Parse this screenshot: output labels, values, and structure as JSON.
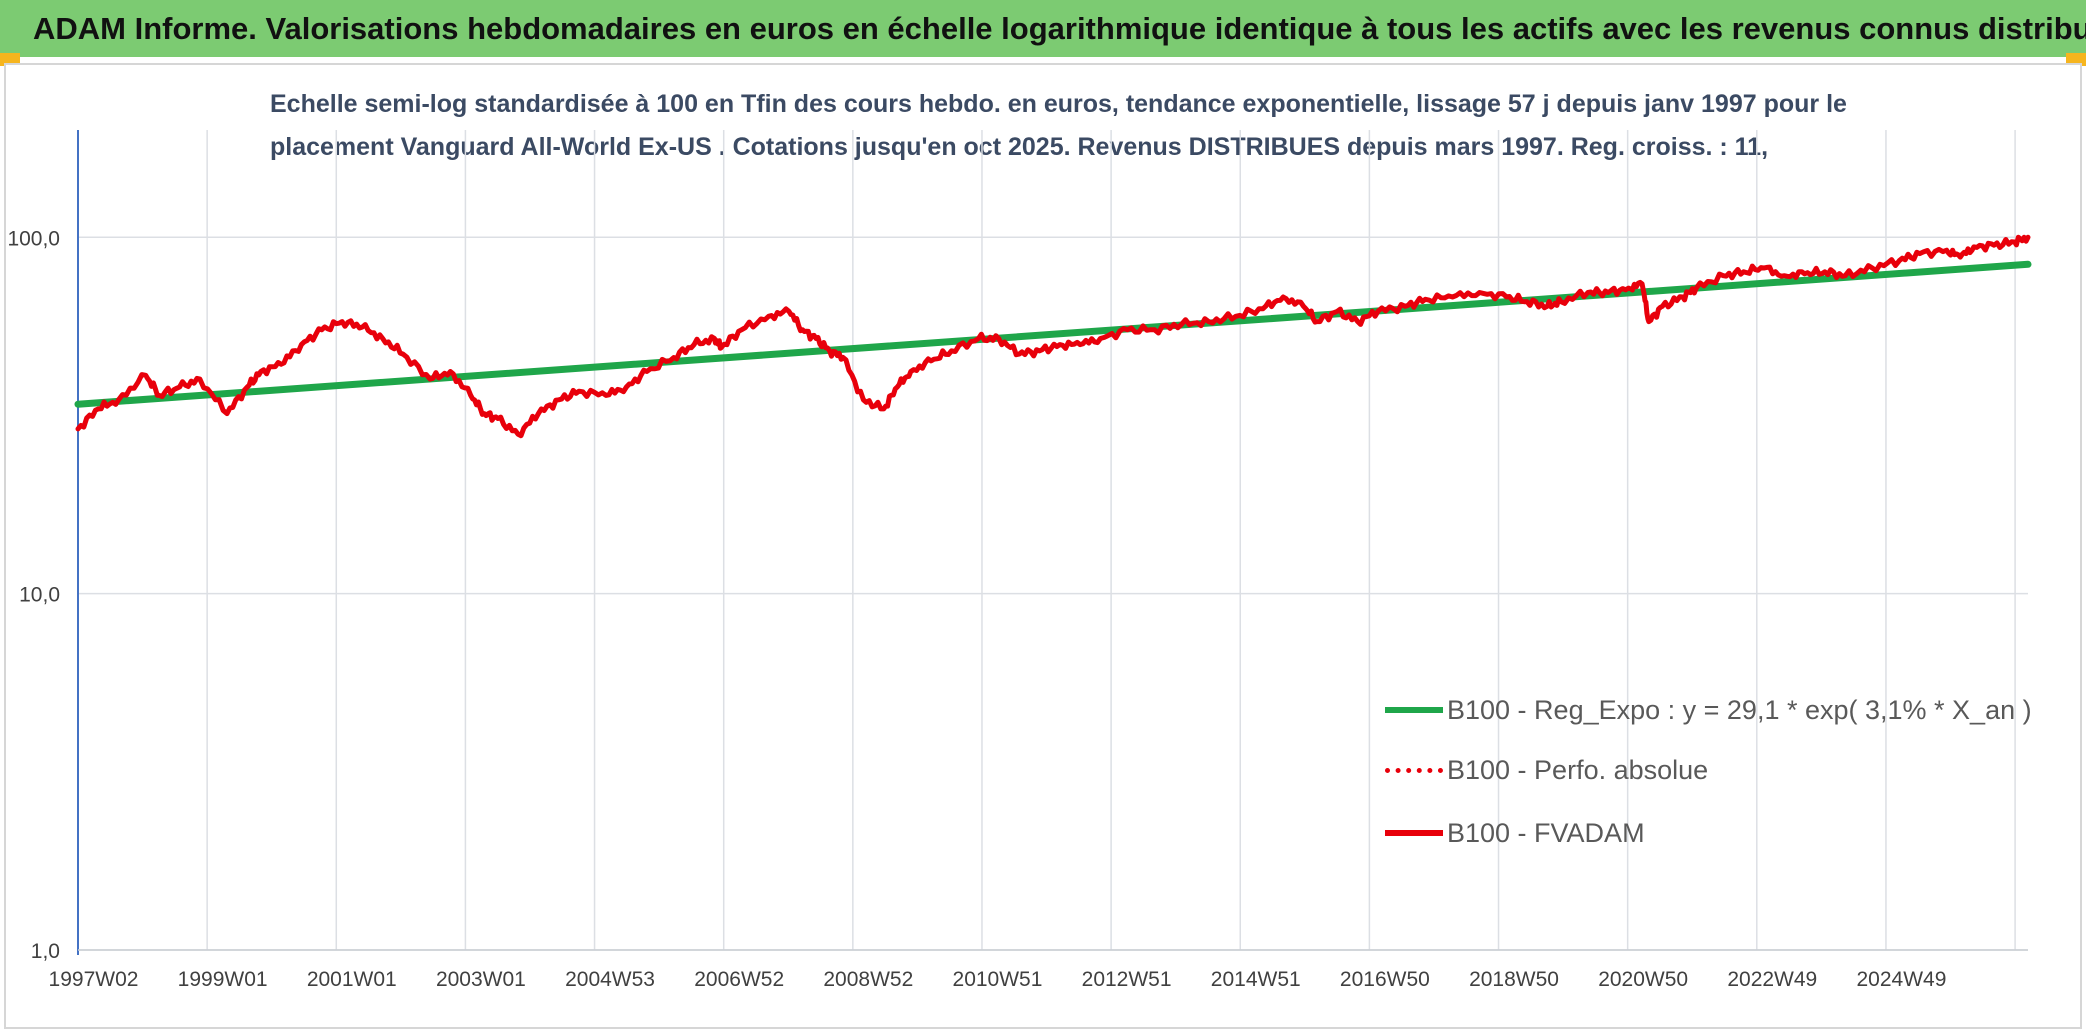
{
  "header": {
    "title": "ADAM Informe. Valorisations hebdomadaires en euros en échelle logarithmique identique à tous les actifs avec les revenus connus distribués"
  },
  "colors": {
    "banner": "#7ccb72",
    "corner": "#f6b51e",
    "fvadam": "#e8000b",
    "regression": "#1fa64a",
    "grid": "#dcdfe4",
    "axis": "#4472c4"
  },
  "chart_data": {
    "type": "line",
    "title_lines": [
      "Echelle semi-log standardisée à 100 en Tfin des cours hebdo. en euros, tendance exponentielle, lissage 57 j depuis janv 1997 pour le",
      "placement Vanguard All-World Ex-US . Cotations jusqu'en oct 2025. Revenus DISTRIBUES depuis mars 1997. Reg. croiss. : 11,"
    ],
    "y_scale": "log",
    "y_range": [
      1,
      200
    ],
    "y_ticks": [
      "100,0",
      "10,0",
      "1,0"
    ],
    "x_range": [
      1997.0,
      2025.8
    ],
    "x_tick_labels": [
      "1997W02",
      "1999W01",
      "2001W01",
      "2003W01",
      "2004W53",
      "2006W52",
      "2008W52",
      "2010W51",
      "2012W51",
      "2014W51",
      "2016W50",
      "2018W50",
      "2020W50",
      "2022W49",
      "2024W49"
    ],
    "grid": true,
    "legend_position": "bottom-right",
    "series": [
      {
        "name": "B100 - Reg_Expo : y = 29,1 * exp( 3,1% *  X_an )",
        "style": "solid",
        "x": [
          1997.0,
          2025.8
        ],
        "y": [
          34.0,
          84.0
        ]
      },
      {
        "name": "B100 - Perfo. absolue",
        "style": "dotted",
        "x": [],
        "y": []
      },
      {
        "name": "B100 - FVADAM",
        "style": "solid",
        "x": [
          1997.0,
          1997.3,
          1997.6,
          1998.0,
          1998.2,
          1998.5,
          1998.8,
          1999.2,
          1999.5,
          1999.7,
          2000.0,
          2000.3,
          2000.6,
          2000.9,
          2001.2,
          2001.5,
          2001.8,
          2002.2,
          2002.5,
          2002.8,
          2003.0,
          2003.2,
          2003.5,
          2003.8,
          2004.1,
          2004.4,
          2004.8,
          2005.1,
          2005.4,
          2005.8,
          2006.1,
          2006.4,
          2006.5,
          2006.8,
          2007.2,
          2007.5,
          2007.7,
          2007.9,
          2008.1,
          2008.3,
          2008.6,
          2008.9,
          2009.1,
          2009.3,
          2009.6,
          2009.9,
          2010.3,
          2010.6,
          2010.9,
          2011.2,
          2011.5,
          2011.8,
          2012.1,
          2012.5,
          2012.9,
          2013.3,
          2013.7,
          2014.1,
          2014.5,
          2014.8,
          2015.1,
          2015.3,
          2015.6,
          2015.9,
          2016.2,
          2016.6,
          2016.9,
          2017.3,
          2017.7,
          2018.1,
          2018.4,
          2018.7,
          2018.9,
          2019.3,
          2019.6,
          2019.9,
          2020.1,
          2020.2,
          2020.4,
          2020.7,
          2020.9,
          2021.3,
          2021.6,
          2021.9,
          2022.2,
          2022.5,
          2022.8,
          2023.1,
          2023.5,
          2023.9,
          2024.2,
          2024.6,
          2024.8,
          2025.0,
          2025.3,
          2025.6,
          2025.8
        ],
        "y": [
          29,
          33,
          35,
          41,
          36,
          38,
          40,
          32,
          38,
          42,
          44,
          50,
          55,
          58,
          56,
          52,
          47,
          40,
          42,
          36,
          32,
          31,
          28,
          32,
          35,
          37,
          36,
          38,
          42,
          46,
          50,
          52,
          49,
          55,
          60,
          62,
          55,
          52,
          48,
          46,
          35,
          33,
          38,
          42,
          45,
          48,
          52,
          52,
          47,
          48,
          50,
          50,
          52,
          55,
          55,
          57,
          58,
          60,
          63,
          68,
          64,
          58,
          62,
          58,
          62,
          64,
          67,
          68,
          70,
          68,
          66,
          64,
          66,
          70,
          70,
          72,
          74,
          58,
          64,
          68,
          72,
          78,
          80,
          82,
          78,
          79,
          80,
          78,
          82,
          86,
          90,
          92,
          88,
          94,
          95,
          97,
          100
        ]
      }
    ]
  }
}
